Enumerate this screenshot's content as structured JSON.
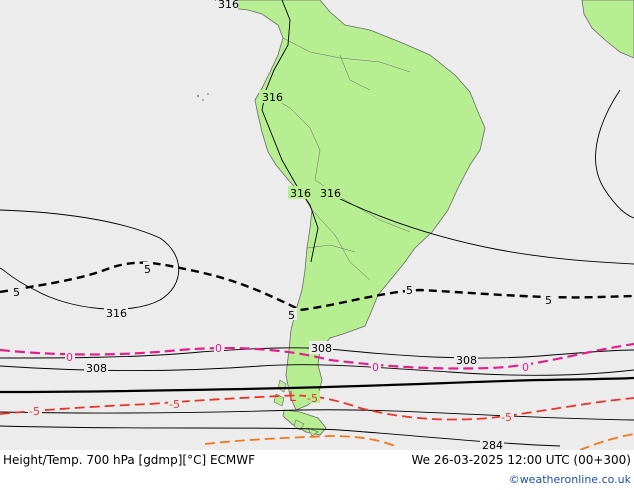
{
  "map": {
    "colors": {
      "ocean": "#ececec",
      "land": "#b7ee91",
      "land_outline": "#6a6a6a",
      "height_contours": "#000000",
      "temp_zero": "#e0208c",
      "temp_minus5": "#e8362a",
      "temp_minus10": "#f07820",
      "temp_5": "#000000"
    },
    "height_labels": [
      "316",
      "316",
      "316",
      "316",
      "316",
      "308",
      "308",
      "284"
    ],
    "temperature_labels": {
      "plus5": [
        "5",
        "5",
        "5",
        "5",
        "5"
      ],
      "zero": [
        "0",
        "0",
        "0",
        "0"
      ],
      "minus5": [
        "-5",
        "-5",
        "-5",
        "-5"
      ]
    }
  },
  "footer": {
    "title_left": "Height/Temp. 700 hPa [gdmp][°C] ECMWF",
    "title_right": "We 26-03-2025 12:00 UTC (00+300)",
    "credit": "©weatheronline.co.uk"
  }
}
